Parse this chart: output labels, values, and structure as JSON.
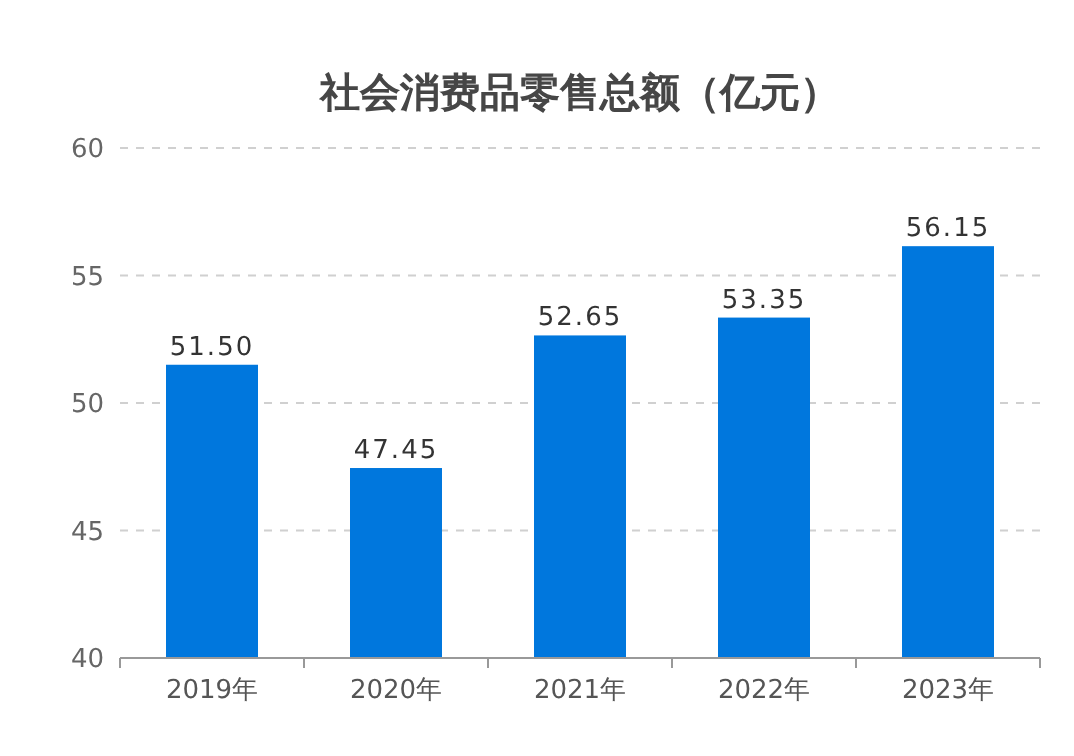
{
  "chart_data": {
    "type": "bar",
    "title": "社会消费品零售总额（亿元）",
    "categories": [
      "2019年",
      "2020年",
      "2021年",
      "2022年",
      "2023年"
    ],
    "values": [
      51.5,
      47.45,
      52.65,
      53.35,
      56.15
    ],
    "value_labels": [
      "51.50",
      "47.45",
      "52.65",
      "53.35",
      "56.15"
    ],
    "color": "#0077dd",
    "ylim": [
      40,
      60
    ],
    "yticks": [
      40,
      45,
      50,
      55,
      60
    ],
    "grid": "y"
  }
}
